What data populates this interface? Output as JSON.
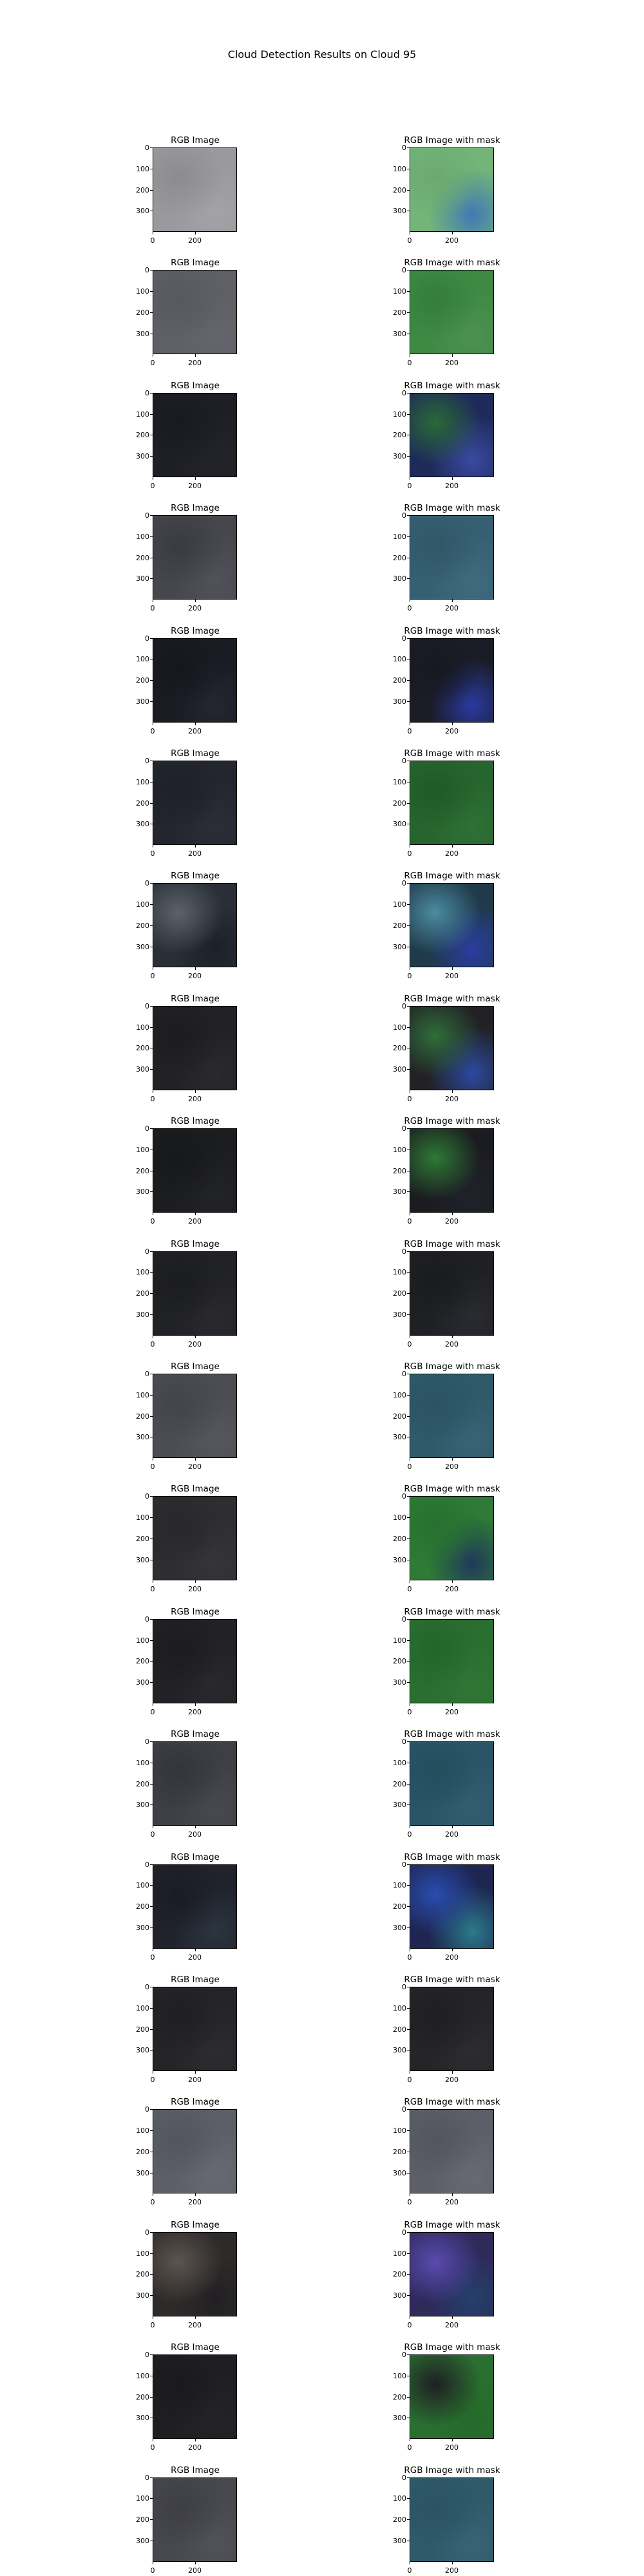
{
  "figure": {
    "title": "Cloud Detection Results on Cloud 95",
    "left_title": "RGB Image",
    "right_title": "RGB Image with mask",
    "y_ticks": [
      "0",
      "100",
      "200",
      "300"
    ],
    "x_ticks": [
      "0",
      "200"
    ]
  },
  "rows": [
    {
      "left": [
        "#9a9a9e",
        "#8c8b90",
        "#a3a2a6"
      ],
      "right": [
        "#74b478",
        "#6aa870",
        "#3f7ab5"
      ]
    },
    {
      "left": [
        "#5f5f66",
        "#575860",
        "#64646b"
      ],
      "right": [
        "#3e8a44",
        "#347d3c",
        "#4d9152"
      ]
    },
    {
      "left": [
        "#1e1f24",
        "#191a1f",
        "#23242a"
      ],
      "right": [
        "#1e2a5a",
        "#2a6a35",
        "#3a4aa0"
      ]
    },
    {
      "left": [
        "#46474d",
        "#3a3b41",
        "#515259"
      ],
      "right": [
        "#366072",
        "#2f5768",
        "#3f6b7e"
      ]
    },
    {
      "left": [
        "#1a1c24",
        "#15171e",
        "#242630"
      ],
      "right": [
        "#1a1c26",
        "#161822",
        "#2a3aa0"
      ]
    },
    {
      "left": [
        "#23262f",
        "#1d2029",
        "#2b2e37"
      ],
      "right": [
        "#27652e",
        "#1f5a27",
        "#2f7036"
      ]
    },
    {
      "left": [
        "#2a2f37",
        "#5c6268",
        "#1c2028"
      ],
      "right": [
        "#1f3a4a",
        "#4c8ba0",
        "#2a3da0"
      ]
    },
    {
      "left": [
        "#222226",
        "#1c1c20",
        "#2a2a2e"
      ],
      "right": [
        "#222226",
        "#2f6e3a",
        "#2b4aa0"
      ]
    },
    {
      "left": [
        "#1c1d21",
        "#17181c",
        "#222327"
      ],
      "right": [
        "#1b1c21",
        "#2e7a34",
        "#20222a"
      ]
    },
    {
      "left": [
        "#212226",
        "#1b1c20",
        "#29292e"
      ],
      "right": [
        "#1f2024",
        "#1a1b1f",
        "#2a2b30"
      ]
    },
    {
      "left": [
        "#4c4d53",
        "#43444a",
        "#56575d"
      ],
      "right": [
        "#2f5a6a",
        "#2a5262",
        "#376374"
      ]
    },
    {
      "left": [
        "#2e2d31",
        "#28272b",
        "#353438"
      ],
      "right": [
        "#2e7a36",
        "#27702f",
        "#1f3a5a"
      ]
    },
    {
      "left": [
        "#222226",
        "#1c1c20",
        "#29292d"
      ],
      "right": [
        "#2a6e30",
        "#23662a",
        "#327636"
      ]
    },
    {
      "left": [
        "#3d3f44",
        "#33353a",
        "#48494f"
      ],
      "right": [
        "#2a5566",
        "#244d5e",
        "#325e70"
      ]
    },
    {
      "left": [
        "#20232c",
        "#1a1c24",
        "#2c3440"
      ],
      "right": [
        "#1d2550",
        "#2a4db0",
        "#2c7a8a"
      ]
    },
    {
      "left": [
        "#252529",
        "#1f1f23",
        "#2c2c30"
      ],
      "right": [
        "#252529",
        "#1f1f23",
        "#2c2c30"
      ]
    },
    {
      "left": [
        "#5c5f68",
        "#52555e",
        "#676a73"
      ],
      "right": [
        "#5c5f68",
        "#52555e",
        "#676a73"
      ]
    },
    {
      "left": [
        "#2e2a28",
        "#5a5550",
        "#222024"
      ],
      "right": [
        "#2e2a5a",
        "#5a4ab0",
        "#24406a"
      ]
    },
    {
      "left": [
        "#1f1f23",
        "#1a1a1e",
        "#242428"
      ],
      "right": [
        "#2a6e30",
        "#1f1f23",
        "#246a2a"
      ]
    },
    {
      "left": [
        "#47484d",
        "#3e3f44",
        "#515257"
      ],
      "right": [
        "#2f5a6a",
        "#2a5262",
        "#376374"
      ]
    }
  ]
}
